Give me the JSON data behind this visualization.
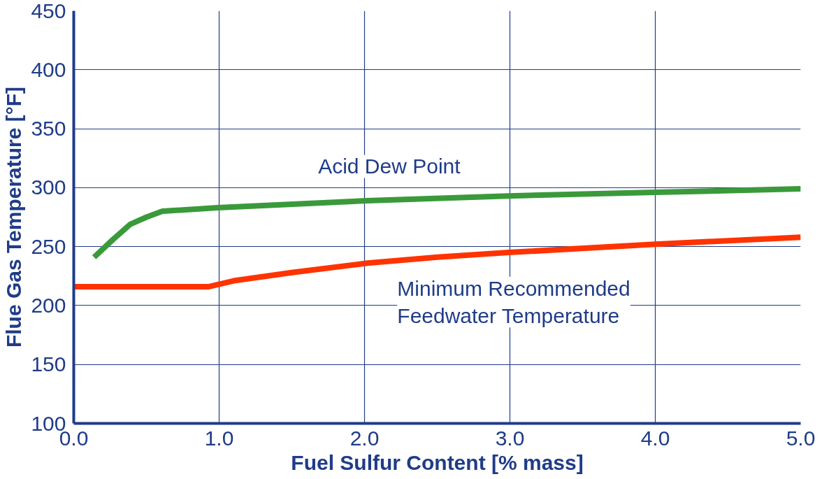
{
  "chart_data": {
    "type": "line",
    "xlabel": "Fuel Sulfur Content [% mass]",
    "ylabel": "Flue Gas Temperature [°F]",
    "xlim": [
      0,
      5
    ],
    "ylim": [
      100,
      450
    ],
    "xticks": [
      {
        "value": 0,
        "label": "0.0"
      },
      {
        "value": 1,
        "label": "1.0"
      },
      {
        "value": 2,
        "label": "2.0"
      },
      {
        "value": 3,
        "label": "3.0"
      },
      {
        "value": 4,
        "label": "4.0"
      },
      {
        "value": 5,
        "label": "5.0"
      }
    ],
    "yticks": [
      100,
      150,
      200,
      250,
      300,
      350,
      400,
      450
    ],
    "grid": true,
    "marker": "none",
    "line_style": "solid",
    "series": [
      {
        "color": "#3a9a3a",
        "x": [
          0.14,
          0.27,
          0.39,
          0.5,
          0.61,
          0.99,
          2.02,
          2.99,
          4.0,
          5.0
        ],
        "values": [
          241,
          256,
          269,
          275,
          280,
          283,
          289,
          293,
          296,
          299
        ]
      },
      {
        "color": "#ff3300",
        "x": [
          0,
          0.93,
          1.1,
          1.5,
          2.02,
          2.5,
          2.99,
          4.0,
          5.0
        ],
        "values": [
          216,
          216,
          221,
          228,
          236,
          241,
          245,
          252,
          258
        ]
      }
    ],
    "annotations": [
      "Acid Dew Point",
      "Minimum Recommended\nFeedwater Temperature"
    ]
  }
}
